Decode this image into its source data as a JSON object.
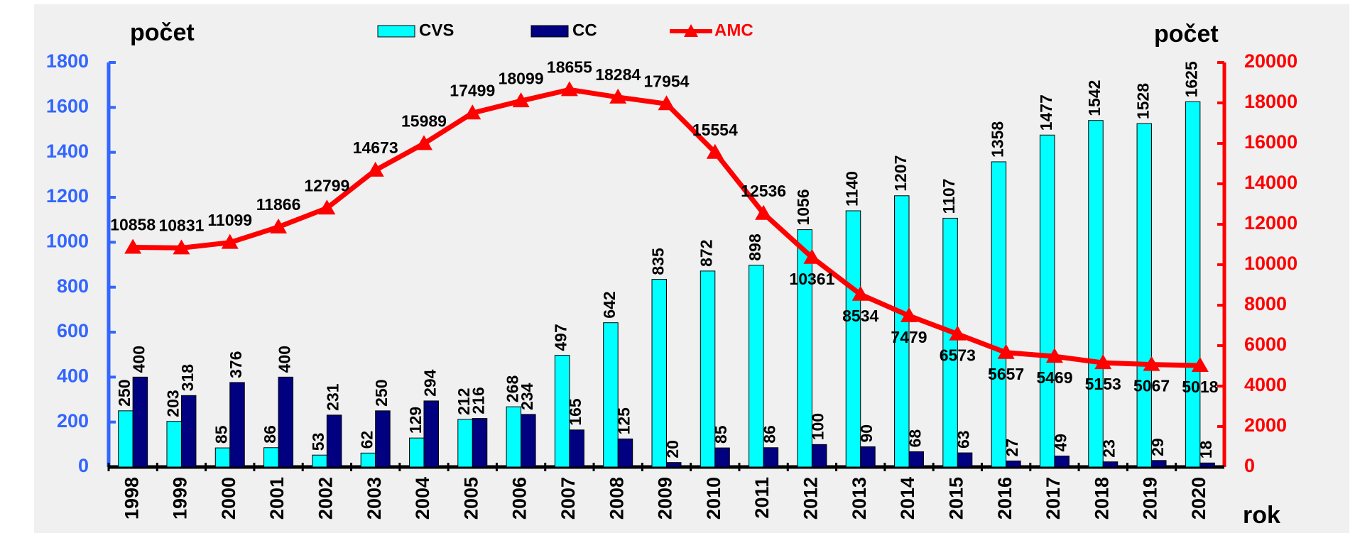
{
  "chart_data": {
    "type": "bar",
    "y_label": "počet",
    "y2_label": "počet",
    "x_label": "rok",
    "categories": [
      "1998",
      "1999",
      "2000",
      "2001",
      "2002",
      "2003",
      "2004",
      "2005",
      "2006",
      "2007",
      "2008",
      "2009",
      "2010",
      "2011",
      "2012",
      "2013",
      "2014",
      "2015",
      "2016",
      "2017",
      "2018",
      "2019",
      "2020"
    ],
    "series": [
      {
        "name": "CVS",
        "type": "bar",
        "color": "#00ffff",
        "values": [
          250,
          203,
          85,
          86,
          53,
          62,
          129,
          212,
          268,
          497,
          642,
          835,
          872,
          898,
          1056,
          1140,
          1207,
          1107,
          1358,
          1477,
          1542,
          1528,
          1625
        ]
      },
      {
        "name": "CC",
        "type": "bar",
        "color": "#000080",
        "values": [
          400,
          318,
          376,
          400,
          231,
          250,
          294,
          216,
          234,
          165,
          125,
          20,
          85,
          86,
          100,
          90,
          68,
          63,
          27,
          49,
          23,
          29,
          18
        ]
      },
      {
        "name": "AMC",
        "type": "line",
        "axis": "y2",
        "color": "#ff0000",
        "values": [
          10858,
          10831,
          11099,
          11866,
          12799,
          14673,
          15989,
          17499,
          18099,
          18655,
          18284,
          17954,
          15554,
          12536,
          10361,
          8534,
          7479,
          6573,
          5657,
          5469,
          5153,
          5067,
          5018
        ]
      }
    ],
    "ylim": [
      0,
      1800
    ],
    "yticks": [
      0,
      200,
      400,
      600,
      800,
      1000,
      1200,
      1400,
      1600,
      1800
    ],
    "y2lim": [
      0,
      20000
    ],
    "y2ticks": [
      0,
      2000,
      4000,
      6000,
      8000,
      10000,
      12000,
      14000,
      16000,
      18000,
      20000
    ],
    "y_color": "#3366ff",
    "y2_color": "#ff0000"
  }
}
